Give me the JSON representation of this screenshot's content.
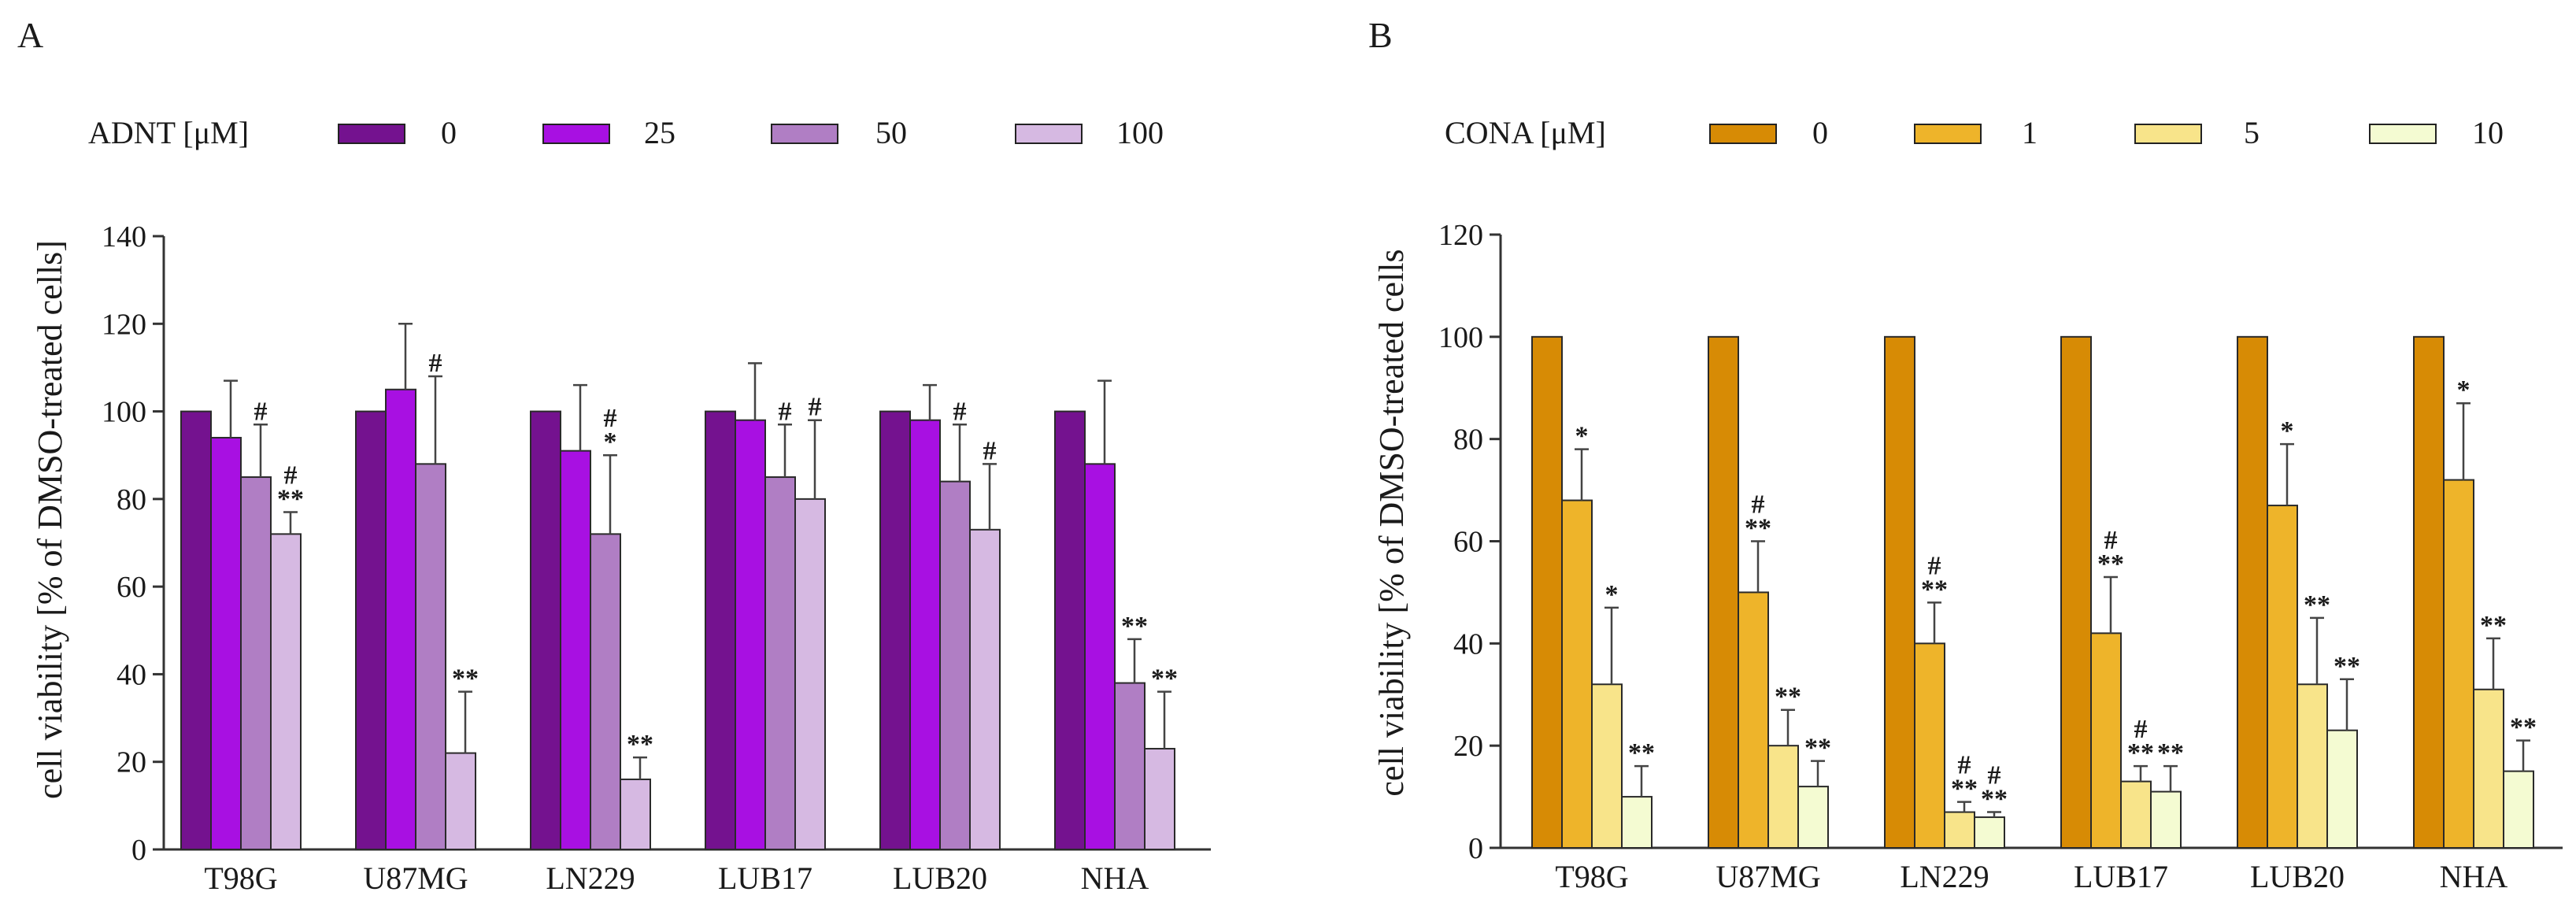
{
  "chart_data": [
    {
      "panel": "A",
      "type": "bar",
      "legend_title": "ADNT [μM]",
      "ylabel": "cell viability [% of DMSO-treated cells]",
      "xlabel": "",
      "ylim": [
        0,
        140
      ],
      "yticks": [
        0,
        20,
        40,
        60,
        80,
        100,
        120,
        140
      ],
      "categories": [
        "T98G",
        "U87MG",
        "LN229",
        "LUB17",
        "LUB20",
        "NHA"
      ],
      "series": [
        {
          "name": "0",
          "color": "#74128f",
          "values": [
            100,
            100,
            100,
            100,
            100,
            100
          ],
          "errors": [
            0,
            0,
            0,
            0,
            0,
            0
          ],
          "annotations": [
            "",
            "",
            "",
            "",
            "",
            ""
          ]
        },
        {
          "name": "25",
          "color": "#a810e2",
          "values": [
            94,
            105,
            91,
            98,
            98,
            88
          ],
          "errors": [
            13,
            15,
            15,
            13,
            8,
            19
          ],
          "annotations": [
            "",
            "",
            "",
            "",
            "",
            ""
          ]
        },
        {
          "name": "50",
          "color": "#b07ec4",
          "values": [
            85,
            88,
            72,
            85,
            84,
            38
          ],
          "errors": [
            12,
            20,
            18,
            12,
            13,
            10
          ],
          "annotations": [
            "#",
            "#",
            "#\n*",
            "#",
            "#",
            "**"
          ]
        },
        {
          "name": "100",
          "color": "#d6b9e2",
          "values": [
            72,
            22,
            16,
            80,
            73,
            23
          ],
          "errors": [
            5,
            14,
            5,
            18,
            15,
            13
          ],
          "annotations": [
            "#\n**",
            "**",
            "**",
            "#",
            "#",
            "**"
          ]
        }
      ]
    },
    {
      "panel": "B",
      "type": "bar",
      "legend_title": "CONA [μM]",
      "ylabel": "cell viability [% of DMSO-treated cells",
      "xlabel": "",
      "ylim": [
        0,
        120
      ],
      "yticks": [
        0,
        20,
        40,
        60,
        80,
        100,
        120
      ],
      "categories": [
        "T98G",
        "U87MG",
        "LN229",
        "LUB17",
        "LUB20",
        "NHA"
      ],
      "series": [
        {
          "name": "0",
          "color": "#d78b05",
          "values": [
            100,
            100,
            100,
            100,
            100,
            100
          ],
          "errors": [
            0,
            0,
            0,
            0,
            0,
            0
          ],
          "annotations": [
            "",
            "",
            "",
            "",
            "",
            ""
          ]
        },
        {
          "name": "1",
          "color": "#eeb42a",
          "values": [
            68,
            50,
            40,
            42,
            67,
            72
          ],
          "errors": [
            10,
            10,
            8,
            11,
            12,
            15
          ],
          "annotations": [
            "*",
            "#\n**",
            "#\n**",
            "#\n**",
            "*",
            "*"
          ]
        },
        {
          "name": "5",
          "color": "#f8e48a",
          "values": [
            32,
            20,
            7,
            13,
            32,
            31
          ],
          "errors": [
            15,
            7,
            2,
            3,
            13,
            10
          ],
          "annotations": [
            "*",
            "**",
            "#\n**",
            "#\n**",
            "**",
            "**"
          ]
        },
        {
          "name": "10",
          "color": "#f4fbd2",
          "values": [
            10,
            12,
            6,
            11,
            23,
            15
          ],
          "errors": [
            6,
            5,
            1,
            5,
            10,
            6
          ],
          "annotations": [
            "**",
            "**",
            "#\n**",
            "**",
            "**",
            "**"
          ]
        }
      ]
    }
  ]
}
